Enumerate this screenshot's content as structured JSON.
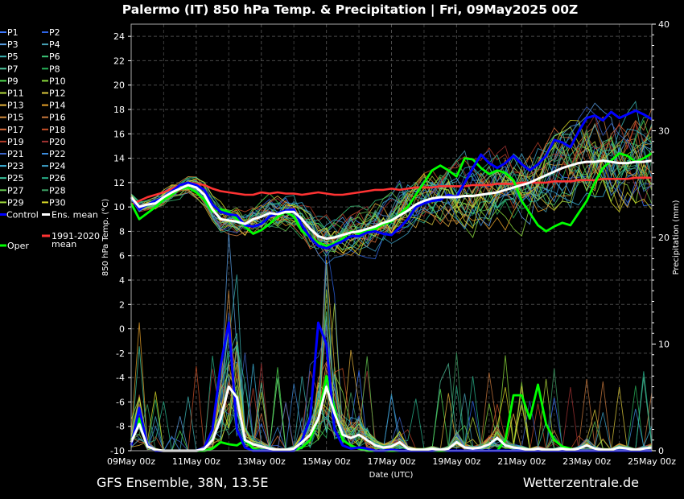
{
  "header": {
    "title": "Palermo  (IT)  850 hPa Temp. & Precipitation | Fri, 09May2025 00Z"
  },
  "footer": {
    "left": "GFS Ensemble, 38N, 13.5E",
    "right": "Wetterzentrale.de"
  },
  "colors": {
    "background": "#000000",
    "grid": "#555555",
    "control": "#0000ff",
    "ens_mean": "#ffffff",
    "oper": "#00ff00",
    "climate_mean": "#ff3333"
  },
  "chart_data": {
    "type": "line",
    "ylabel": "850 hPa Temp. (°C)",
    "y2label": "Precipitation (mm)",
    "xlabel": "Date (UTC)",
    "ylim": [
      -10,
      25
    ],
    "y2lim": [
      0,
      40
    ],
    "xlim": [
      0,
      16
    ],
    "yticks": [
      -10,
      -8,
      -6,
      -4,
      -2,
      0,
      2,
      4,
      6,
      8,
      10,
      12,
      14,
      16,
      18,
      20,
      22,
      24
    ],
    "y2ticks": [
      0,
      10,
      20,
      30,
      40
    ],
    "xticks": [
      {
        "x": 0,
        "label": "09May 00z"
      },
      {
        "x": 2,
        "label": "11May 00z"
      },
      {
        "x": 4,
        "label": "13May 00z"
      },
      {
        "x": 6,
        "label": "15May 00z"
      },
      {
        "x": 8,
        "label": "17May 00z"
      },
      {
        "x": 10,
        "label": "19May 00z"
      },
      {
        "x": 12,
        "label": "21May 00z"
      },
      {
        "x": 14,
        "label": "23May 00z"
      },
      {
        "x": 16,
        "label": "25May 00z"
      }
    ],
    "grid": true,
    "legend_position": "left",
    "x_step_days": 0.25,
    "legend": {
      "members": [
        {
          "name": "P1",
          "color": "#3c78ff"
        },
        {
          "name": "P2",
          "color": "#2e64e6"
        },
        {
          "name": "P3",
          "color": "#5aa0e6"
        },
        {
          "name": "P4",
          "color": "#46a0b4"
        },
        {
          "name": "P5",
          "color": "#3cb4b4"
        },
        {
          "name": "P6",
          "color": "#3cc878"
        },
        {
          "name": "P7",
          "color": "#50c8a0"
        },
        {
          "name": "P8",
          "color": "#28b45a"
        },
        {
          "name": "P9",
          "color": "#50dc50"
        },
        {
          "name": "P10",
          "color": "#8cdc3c"
        },
        {
          "name": "P11",
          "color": "#b4dc3c"
        },
        {
          "name": "P12",
          "color": "#dcc83c"
        },
        {
          "name": "P13",
          "color": "#e6b43c"
        },
        {
          "name": "P14",
          "color": "#e6a028"
        },
        {
          "name": "P15",
          "color": "#d28c3c"
        },
        {
          "name": "P16",
          "color": "#c8783c"
        },
        {
          "name": "P17",
          "color": "#dc6e3c"
        },
        {
          "name": "P18",
          "color": "#c85028"
        },
        {
          "name": "P19",
          "color": "#b43c28"
        },
        {
          "name": "P20",
          "color": "#a03232"
        },
        {
          "name": "P21",
          "color": "#3c64c8"
        },
        {
          "name": "P22",
          "color": "#3c8cdc"
        },
        {
          "name": "P23",
          "color": "#3cb4dc"
        },
        {
          "name": "P24",
          "color": "#3ca0c8"
        },
        {
          "name": "P25",
          "color": "#3cc8a0"
        },
        {
          "name": "P26",
          "color": "#28b48c"
        },
        {
          "name": "P27",
          "color": "#64c850"
        },
        {
          "name": "P28",
          "color": "#3ca064"
        },
        {
          "name": "P29",
          "color": "#a0dc3c"
        },
        {
          "name": "P30",
          "color": "#dcdc28"
        }
      ],
      "control": "Control",
      "ens_mean": "Ens. mean",
      "oper": "Oper",
      "climate": "1991-2020",
      "climate_2": "mean"
    },
    "series": [
      {
        "key": "ens_mean",
        "role": "temp",
        "values": [
          10.8,
          10,
          10.2,
          10.3,
          10.8,
          11.2,
          11.5,
          11.8,
          11.6,
          11,
          9.8,
          9,
          8.9,
          8.8,
          8.6,
          9,
          9.2,
          9.5,
          9.4,
          9.6,
          9.6,
          9,
          8.2,
          7.6,
          7.4,
          7.5,
          7.7,
          7.9,
          8,
          8.2,
          8.4,
          8.7,
          8.9,
          9.3,
          9.7,
          10.2,
          10.5,
          10.7,
          10.8,
          10.8,
          10.8,
          10.9,
          10.9,
          11,
          11.1,
          11.2,
          11.4,
          11.6,
          11.8,
          12,
          12.3,
          12.6,
          12.9,
          13.2,
          13.4,
          13.6,
          13.7,
          13.7,
          13.8,
          13.7,
          13.6,
          13.6,
          13.7,
          13.7,
          13.8
        ]
      },
      {
        "key": "control",
        "role": "temp",
        "values": [
          10.8,
          9.8,
          10.2,
          10.5,
          10.8,
          11.3,
          11.8,
          12,
          11.8,
          11.4,
          10.2,
          9.6,
          9.4,
          9.3,
          8.5,
          8.4,
          8.6,
          9.2,
          9.5,
          9.7,
          9.8,
          8.5,
          7.5,
          6.8,
          6.6,
          6.9,
          7.2,
          7.6,
          7.6,
          7.9,
          8,
          7.8,
          7.7,
          8.3,
          9,
          10,
          10.3,
          10.5,
          10.6,
          11,
          10.8,
          12,
          13.2,
          14.3,
          13.6,
          13.2,
          13.6,
          14.2,
          13.5,
          13,
          13.5,
          14.2,
          15.5,
          15.3,
          14.9,
          16.2,
          17.3,
          17.5,
          17.1,
          17.8,
          17.3,
          17.6,
          17.9,
          17.6,
          17.2
        ]
      },
      {
        "key": "oper",
        "role": "temp",
        "values": [
          10.3,
          9,
          9.5,
          10,
          10.6,
          11,
          11.5,
          11.6,
          11.2,
          10.6,
          9.6,
          9.8,
          9.6,
          9,
          8.4,
          7.8,
          8.1,
          8.6,
          9.2,
          9.6,
          9.2,
          8,
          7.5,
          7.1,
          6.8,
          7,
          7.4,
          8,
          7.8,
          8,
          8.2,
          8.6,
          8.8,
          9.4,
          10,
          11,
          12,
          13,
          13.4,
          13,
          12.5,
          14,
          13.9,
          13.2,
          12.7,
          13,
          12.8,
          12.2,
          10.5,
          9.5,
          8.5,
          8,
          8.4,
          8.7,
          8.5,
          9.5,
          10.5,
          12,
          13.2,
          13.8,
          14.4,
          14.2,
          13.7,
          14,
          14.4
        ]
      },
      {
        "key": "climate",
        "role": "temp",
        "values": [
          10.2,
          10.5,
          10.8,
          11,
          11.2,
          11.5,
          11.8,
          12,
          11.9,
          11.8,
          11.5,
          11.3,
          11.2,
          11.1,
          11,
          11,
          11.2,
          11.1,
          11.2,
          11.1,
          11.1,
          11,
          11.1,
          11.2,
          11.1,
          11,
          11,
          11.1,
          11.2,
          11.3,
          11.4,
          11.4,
          11.5,
          11.4,
          11.5,
          11.6,
          11.6,
          11.6,
          11.7,
          11.7,
          11.7,
          11.7,
          11.8,
          11.8,
          11.8,
          11.9,
          11.9,
          11.9,
          12,
          12,
          12,
          12,
          12.1,
          12.1,
          12.1,
          12.2,
          12.2,
          12.2,
          12.3,
          12.3,
          12.3,
          12.3,
          12.4,
          12.4,
          12.4
        ]
      },
      {
        "key": "ens_mean",
        "role": "precip",
        "values": [
          0.8,
          2.5,
          0.4,
          0.1,
          0,
          0,
          0,
          0,
          0,
          0.2,
          1,
          3,
          6,
          5,
          1,
          0.6,
          0.4,
          0.2,
          0.1,
          0.1,
          0.2,
          0.8,
          1.5,
          3,
          6,
          3.5,
          1.5,
          1.2,
          1.5,
          1,
          0.5,
          0.3,
          0.4,
          0.8,
          0.2,
          0.1,
          0.1,
          0.2,
          0.1,
          0.2,
          0.8,
          0.3,
          0.2,
          0.3,
          0.6,
          1.2,
          0.5,
          0.3,
          0.2,
          0.1,
          0.2,
          0.1,
          0.1,
          0.2,
          0.1,
          0.2,
          0.5,
          0.2,
          0.1,
          0.1,
          0.3,
          0.2,
          0.1,
          0.2,
          0.3
        ]
      },
      {
        "key": "control",
        "role": "precip",
        "values": [
          0.5,
          4,
          0.5,
          0,
          0,
          0,
          0,
          0,
          0,
          0.3,
          2,
          8,
          12,
          2,
          0.3,
          0,
          0,
          0,
          0,
          0,
          0,
          1,
          3,
          12,
          10,
          2,
          0.5,
          0.2,
          0.3,
          0.2,
          0,
          0,
          0.1,
          0,
          0,
          0,
          0,
          0,
          0.1,
          0,
          0,
          0,
          0,
          0,
          0,
          0,
          0,
          0,
          0,
          0,
          0,
          0,
          0,
          0,
          0,
          0,
          0,
          0,
          0,
          0,
          0,
          0,
          0,
          0,
          0
        ]
      },
      {
        "key": "oper",
        "role": "precip",
        "values": [
          1,
          3,
          0.5,
          0,
          0,
          0,
          0,
          0,
          0,
          0,
          0.2,
          0.8,
          0.6,
          0.5,
          1,
          0.2,
          0,
          0,
          0,
          0,
          0,
          0.3,
          1,
          3,
          7,
          4,
          1,
          0.5,
          0.2,
          0,
          0,
          0,
          0,
          0,
          0,
          0,
          0,
          0,
          0,
          0,
          0,
          0,
          0,
          0,
          0,
          0,
          1,
          5.2,
          5.2,
          3,
          6.2,
          2.5,
          1,
          0.4,
          0.2,
          0,
          0,
          0,
          0,
          0,
          0,
          0,
          0,
          0,
          0
        ]
      }
    ]
  }
}
